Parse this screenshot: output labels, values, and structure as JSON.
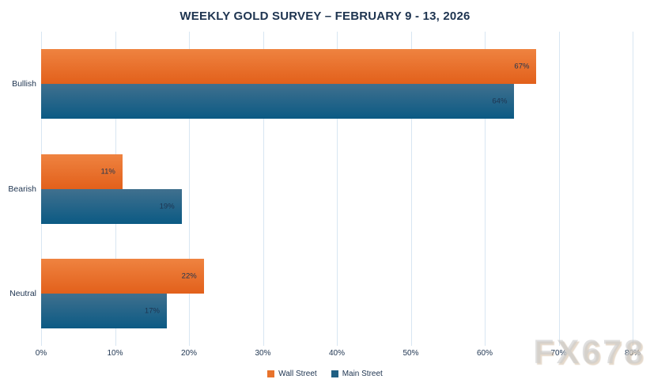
{
  "chart_data": {
    "type": "bar",
    "orientation": "horizontal",
    "title": "WEEKLY GOLD SURVEY – FEBRUARY 9 - 13, 2026",
    "categories": [
      "Bullish",
      "Bearish",
      "Neutral"
    ],
    "series": [
      {
        "name": "Wall Street",
        "values": [
          67,
          11,
          22
        ],
        "labels": [
          "67%",
          "11%",
          "22%"
        ],
        "color_top": "#ef8340",
        "color_bottom": "#e2601b",
        "legend_color": "#e8732c"
      },
      {
        "name": "Main Street",
        "values": [
          64,
          19,
          17
        ],
        "labels": [
          "64%",
          "19%",
          "17%"
        ],
        "color_top": "#40708e",
        "color_bottom": "#0b5a84",
        "legend_color": "#1f5f83"
      }
    ],
    "xlim": [
      0,
      80
    ],
    "x_ticks": [
      "0%",
      "10%",
      "20%",
      "30%",
      "40%",
      "50%",
      "60%",
      "70%",
      "80%"
    ],
    "x_tick_values": [
      0,
      10,
      20,
      30,
      40,
      50,
      60,
      70,
      80
    ],
    "grid": true,
    "legend_position": "bottom"
  },
  "watermark": "FX678",
  "colors": {
    "text": "#1e3450",
    "gridline": "#d8e6f2",
    "background": "#ffffff"
  }
}
